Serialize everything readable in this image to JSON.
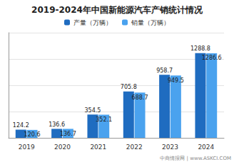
{
  "chart_data": {
    "type": "bar",
    "title": "2019-2024年中国新能源汽车产销统计情况",
    "categories": [
      "2019",
      "2020",
      "2021",
      "2022",
      "2023",
      "2024"
    ],
    "series": [
      {
        "name": "产量（万辆）",
        "color": "#1f6cc0",
        "values": [
          124.2,
          136.6,
          354.5,
          705.8,
          958.7,
          1288.8
        ]
      },
      {
        "name": "销量（万辆）",
        "color": "#4aa2ee",
        "values": [
          120.6,
          136.7,
          352.1,
          688.7,
          949.5,
          1286.6
        ]
      }
    ],
    "ylim": [
      0,
      1600
    ],
    "yticks": [
      0,
      400,
      800,
      1200,
      1600
    ],
    "grid": true,
    "legend": "top",
    "data_labels": true,
    "tick_labels": "x",
    "annotations": [
      "中商情报网 | www.ASKCI.COM"
    ]
  }
}
